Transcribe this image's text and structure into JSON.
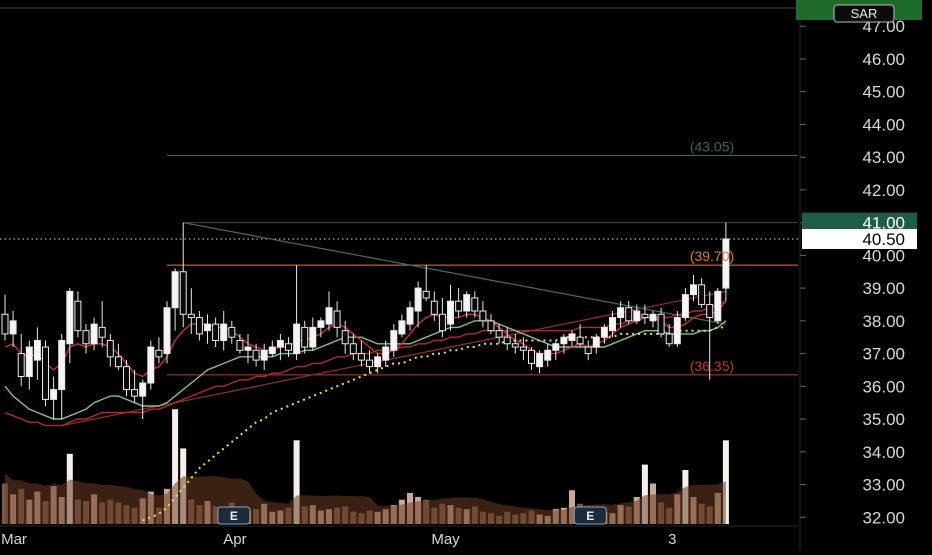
{
  "chart_data": {
    "type": "candlestick",
    "title": "",
    "xlabel": "",
    "ylabel": "",
    "ylim": [
      31.0,
      47.8
    ],
    "y_ticks": [
      "32.00",
      "33.00",
      "34.00",
      "35.00",
      "36.00",
      "37.00",
      "38.00",
      "39.00",
      "40.00",
      "41.00",
      "42.00",
      "43.00",
      "44.00",
      "45.00",
      "46.00",
      "47.00"
    ],
    "x_ticks": [
      {
        "label": "Mar",
        "bar": 0
      },
      {
        "label": "Apr",
        "bar": 29
      },
      {
        "label": "May",
        "bar": 55
      },
      {
        "label": "3",
        "bar": 83
      }
    ],
    "grid": false,
    "top_badge": {
      "label": "SAR",
      "value": 47.5
    },
    "horizontal_levels": [
      {
        "label": "41.00",
        "value": 41.0,
        "style": "solid-badge"
      },
      {
        "label": "40.50",
        "value": 40.5,
        "style": "dotted-badge"
      }
    ],
    "annotations": [
      {
        "label": "(43.05)",
        "value": 43.05,
        "start_bar": 20,
        "color": "#2f6b55"
      },
      {
        "label": "(39.70)",
        "value": 39.7,
        "start_bar": 20,
        "color": "#e07a3c"
      },
      {
        "label": "(36.35)",
        "value": 36.35,
        "start_bar": 20,
        "color": "#c0392b"
      }
    ],
    "earnings_markers": [
      {
        "label": "E",
        "bar": 29
      },
      {
        "label": "E",
        "bar": 73
      }
    ],
    "candles": [
      [
        38.2,
        38.8,
        37.4,
        37.6
      ],
      [
        37.6,
        38.3,
        37.2,
        38.0
      ],
      [
        37.0,
        37.6,
        36.0,
        36.3
      ],
      [
        36.3,
        37.4,
        35.9,
        37.2
      ],
      [
        36.8,
        37.8,
        36.2,
        37.4
      ],
      [
        37.2,
        37.4,
        35.4,
        35.6
      ],
      [
        35.6,
        36.3,
        35.0,
        35.9
      ],
      [
        35.9,
        37.6,
        35.0,
        37.4
      ],
      [
        37.3,
        39.0,
        36.7,
        38.9
      ],
      [
        38.6,
        38.9,
        37.5,
        37.7
      ],
      [
        37.7,
        37.9,
        37.0,
        37.3
      ],
      [
        37.3,
        38.1,
        37.1,
        37.9
      ],
      [
        37.8,
        38.6,
        37.2,
        37.5
      ],
      [
        37.4,
        37.6,
        36.6,
        36.9
      ],
      [
        36.9,
        37.3,
        36.5,
        36.6
      ],
      [
        36.6,
        36.8,
        35.7,
        35.9
      ],
      [
        35.9,
        36.5,
        35.5,
        35.7
      ],
      [
        35.7,
        36.2,
        35.0,
        36.1
      ],
      [
        36.1,
        37.4,
        35.9,
        37.2
      ],
      [
        37.1,
        37.5,
        36.7,
        36.9
      ],
      [
        37.0,
        38.6,
        36.7,
        38.4
      ],
      [
        38.4,
        39.6,
        37.7,
        39.5
      ],
      [
        39.5,
        41.0,
        37.8,
        38.2
      ],
      [
        38.2,
        39.0,
        37.6,
        38.1
      ],
      [
        38.1,
        38.3,
        37.4,
        37.6
      ],
      [
        37.7,
        38.2,
        37.3,
        37.9
      ],
      [
        37.9,
        38.1,
        37.2,
        37.4
      ],
      [
        37.4,
        38.3,
        37.1,
        37.9
      ],
      [
        37.8,
        38.0,
        37.3,
        37.5
      ],
      [
        37.4,
        37.6,
        37.0,
        37.1
      ],
      [
        37.1,
        37.6,
        36.7,
        37.2
      ],
      [
        37.1,
        37.3,
        36.6,
        36.8
      ],
      [
        36.8,
        37.3,
        36.5,
        37.1
      ],
      [
        37.0,
        37.4,
        36.9,
        37.2
      ],
      [
        37.2,
        37.6,
        36.8,
        37.4
      ],
      [
        37.3,
        37.5,
        36.9,
        37.1
      ],
      [
        37.0,
        39.7,
        36.8,
        37.9
      ],
      [
        37.8,
        38.0,
        37.0,
        37.2
      ],
      [
        37.2,
        38.1,
        37.1,
        37.8
      ],
      [
        37.8,
        38.1,
        37.5,
        38.0
      ],
      [
        37.9,
        38.9,
        37.7,
        38.4
      ],
      [
        38.3,
        38.6,
        37.5,
        37.8
      ],
      [
        37.7,
        38.0,
        37.0,
        37.3
      ],
      [
        37.3,
        37.6,
        36.8,
        37.0
      ],
      [
        37.0,
        37.4,
        36.6,
        36.8
      ],
      [
        36.8,
        37.1,
        36.4,
        36.6
      ],
      [
        36.6,
        37.0,
        36.4,
        36.9
      ],
      [
        36.8,
        37.4,
        36.6,
        37.2
      ],
      [
        37.1,
        37.9,
        36.9,
        37.7
      ],
      [
        37.6,
        38.2,
        37.5,
        38.0
      ],
      [
        37.9,
        38.6,
        37.7,
        38.4
      ],
      [
        38.3,
        39.2,
        37.8,
        39.0
      ],
      [
        38.9,
        39.7,
        38.6,
        38.7
      ],
      [
        38.6,
        38.9,
        38.0,
        38.2
      ],
      [
        38.2,
        38.7,
        37.5,
        37.7
      ],
      [
        37.9,
        39.1,
        37.7,
        38.6
      ],
      [
        38.6,
        39.0,
        38.1,
        38.3
      ],
      [
        38.3,
        38.9,
        38.1,
        38.8
      ],
      [
        38.7,
        38.9,
        38.1,
        38.3
      ],
      [
        38.3,
        38.6,
        37.8,
        38.0
      ],
      [
        38.0,
        38.2,
        37.6,
        37.7
      ],
      [
        37.7,
        37.9,
        37.3,
        37.5
      ],
      [
        37.5,
        37.8,
        37.1,
        37.3
      ],
      [
        37.3,
        37.6,
        37.0,
        37.2
      ],
      [
        37.2,
        37.5,
        36.8,
        37.1
      ],
      [
        37.1,
        37.2,
        36.5,
        36.7
      ],
      [
        36.6,
        37.1,
        36.4,
        37.0
      ],
      [
        36.8,
        37.3,
        36.6,
        37.1
      ],
      [
        37.1,
        37.4,
        36.8,
        37.3
      ],
      [
        37.3,
        37.6,
        37.0,
        37.5
      ],
      [
        37.4,
        37.7,
        37.2,
        37.6
      ],
      [
        37.5,
        37.9,
        37.2,
        37.3
      ],
      [
        37.2,
        37.4,
        36.8,
        37.0
      ],
      [
        37.2,
        37.6,
        37.0,
        37.5
      ],
      [
        37.5,
        37.9,
        37.3,
        37.8
      ],
      [
        37.7,
        38.3,
        37.5,
        38.1
      ],
      [
        38.1,
        38.6,
        37.8,
        38.4
      ],
      [
        38.4,
        38.6,
        37.9,
        38.0
      ],
      [
        38.0,
        38.5,
        37.9,
        38.3
      ],
      [
        38.2,
        38.5,
        37.9,
        38.1
      ],
      [
        38.0,
        38.3,
        37.8,
        38.2
      ],
      [
        38.2,
        38.4,
        37.5,
        37.6
      ],
      [
        37.6,
        37.9,
        37.2,
        37.3
      ],
      [
        37.3,
        38.3,
        37.2,
        38.1
      ],
      [
        38.1,
        39.0,
        38.0,
        38.8
      ],
      [
        38.8,
        39.4,
        38.6,
        39.1
      ],
      [
        39.1,
        39.3,
        38.4,
        38.5
      ],
      [
        38.5,
        38.9,
        36.2,
        38.1
      ],
      [
        38.0,
        39.0,
        37.9,
        38.9
      ],
      [
        39.0,
        41.0,
        38.6,
        40.5
      ]
    ],
    "volume": [
      30,
      22,
      26,
      18,
      24,
      17,
      28,
      20,
      52,
      18,
      17,
      22,
      16,
      18,
      16,
      14,
      12,
      19,
      24,
      12,
      26,
      85,
      56,
      18,
      14,
      17,
      13,
      12,
      16,
      12,
      10,
      11,
      15,
      9,
      10,
      12,
      62,
      13,
      14,
      10,
      11,
      12,
      13,
      9,
      8,
      10,
      9,
      11,
      14,
      18,
      23,
      20,
      18,
      12,
      15,
      14,
      12,
      11,
      13,
      9,
      8,
      6,
      9,
      7,
      8,
      10,
      7,
      6,
      11,
      12,
      25,
      15,
      12,
      10,
      9,
      8,
      14,
      13,
      20,
      44,
      30,
      16,
      12,
      22,
      40,
      20,
      15,
      13,
      23,
      62
    ],
    "sma_fast": [
      37.2,
      37.3,
      37.0,
      36.9,
      37.0,
      36.7,
      36.5,
      36.7,
      37.2,
      37.3,
      37.2,
      37.3,
      37.3,
      37.2,
      37.0,
      36.7,
      36.4,
      36.3,
      36.5,
      36.6,
      36.9,
      37.4,
      37.7,
      37.9,
      37.9,
      37.9,
      37.8,
      37.8,
      37.7,
      37.5,
      37.3,
      37.2,
      37.1,
      37.1,
      37.2,
      37.2,
      37.4,
      37.4,
      37.5,
      37.6,
      37.8,
      37.9,
      37.8,
      37.6,
      37.4,
      37.2,
      37.0,
      37.0,
      37.1,
      37.3,
      37.6,
      37.9,
      38.1,
      38.2,
      38.1,
      38.1,
      38.1,
      38.2,
      38.2,
      38.1,
      38.0,
      37.8,
      37.6,
      37.4,
      37.3,
      37.1,
      37.0,
      37.0,
      37.0,
      37.1,
      37.2,
      37.3,
      37.2,
      37.3,
      37.4,
      37.6,
      37.8,
      37.9,
      38.0,
      38.1,
      38.1,
      38.0,
      37.8,
      37.8,
      37.9,
      38.1,
      38.2,
      38.2,
      38.3,
      38.6
    ],
    "sma_slow": [
      36.0,
      35.7,
      35.5,
      35.3,
      35.2,
      35.1,
      35.0,
      35.0,
      35.1,
      35.2,
      35.3,
      35.5,
      35.6,
      35.7,
      35.7,
      35.6,
      35.5,
      35.4,
      35.4,
      35.4,
      35.5,
      35.7,
      35.9,
      36.1,
      36.3,
      36.5,
      36.6,
      36.7,
      36.8,
      36.9,
      36.9,
      36.9,
      36.9,
      36.9,
      37.0,
      37.0,
      37.0,
      37.1,
      37.1,
      37.2,
      37.3,
      37.4,
      37.5,
      37.5,
      37.5,
      37.4,
      37.3,
      37.3,
      37.3,
      37.3,
      37.3,
      37.4,
      37.5,
      37.6,
      37.7,
      37.8,
      37.8,
      37.9,
      38.0,
      38.0,
      38.0,
      37.9,
      37.8,
      37.7,
      37.6,
      37.5,
      37.4,
      37.3,
      37.2,
      37.2,
      37.2,
      37.2,
      37.2,
      37.2,
      37.2,
      37.3,
      37.4,
      37.5,
      37.6,
      37.7,
      37.7,
      37.7,
      37.6,
      37.6,
      37.6,
      37.6,
      37.7,
      37.7,
      37.8,
      38.0
    ],
    "ema_long": [
      35.2,
      35.1,
      35.0,
      34.9,
      34.9,
      34.8,
      34.8,
      34.8,
      34.9,
      35.0,
      35.0,
      35.1,
      35.2,
      35.2,
      35.2,
      35.2,
      35.2,
      35.2,
      35.3,
      35.3,
      35.4,
      35.5,
      35.6,
      35.7,
      35.8,
      35.9,
      36.0,
      36.0,
      36.1,
      36.2,
      36.2,
      36.3,
      36.3,
      36.4,
      36.4,
      36.5,
      36.6,
      36.6,
      36.7,
      36.7,
      36.8,
      36.9,
      36.9,
      37.0,
      37.0,
      37.0,
      37.1,
      37.1,
      37.1,
      37.2,
      37.2,
      37.3,
      37.3,
      37.4,
      37.4,
      37.5,
      37.5,
      37.6,
      37.6,
      37.7,
      37.7,
      37.7,
      37.7,
      37.7,
      37.7,
      37.7,
      37.7,
      37.7,
      37.7,
      37.7,
      37.7,
      37.8,
      37.8,
      37.8,
      37.8,
      37.9,
      37.9,
      38.0,
      38.0,
      38.1,
      38.1,
      38.1,
      38.1,
      38.2,
      38.2,
      38.3,
      38.3,
      38.4,
      38.5,
      38.6
    ],
    "sar": [
      null,
      null,
      null,
      null,
      null,
      null,
      null,
      null,
      null,
      null,
      null,
      null,
      null,
      null,
      null,
      null,
      null,
      31.9,
      32.0,
      32.1,
      32.3,
      32.6,
      32.9,
      33.2,
      33.5,
      33.7,
      33.9,
      34.1,
      34.3,
      34.5,
      34.7,
      34.9,
      35.0,
      35.2,
      35.3,
      35.4,
      35.5,
      35.6,
      35.7,
      35.8,
      35.9,
      36.0,
      36.1,
      36.2,
      36.3,
      36.4,
      36.5,
      36.6,
      36.7,
      36.7,
      36.8,
      36.9,
      36.9,
      37.0,
      37.0,
      37.1,
      37.1,
      37.2,
      37.2,
      37.3,
      37.3,
      37.3,
      37.4,
      37.4,
      37.4,
      37.4,
      37.4,
      37.4,
      37.4,
      37.5,
      37.5,
      37.5,
      37.5,
      37.5,
      37.5,
      37.5,
      37.6,
      37.6,
      37.6,
      37.6,
      37.6,
      37.6,
      37.6,
      37.7,
      37.7,
      37.7,
      37.7,
      37.7,
      37.8,
      37.8
    ],
    "trendlines": [
      {
        "name": "upper",
        "from": {
          "bar": 22,
          "value": 41.0
        },
        "to": {
          "bar": 89,
          "value": 37.9
        },
        "color": "#3d6b5c"
      },
      {
        "name": "lower",
        "from": {
          "bar": 7,
          "value": 34.8
        },
        "to": {
          "bar": 89,
          "value": 38.9
        },
        "color": "#8e2a2a"
      }
    ]
  }
}
